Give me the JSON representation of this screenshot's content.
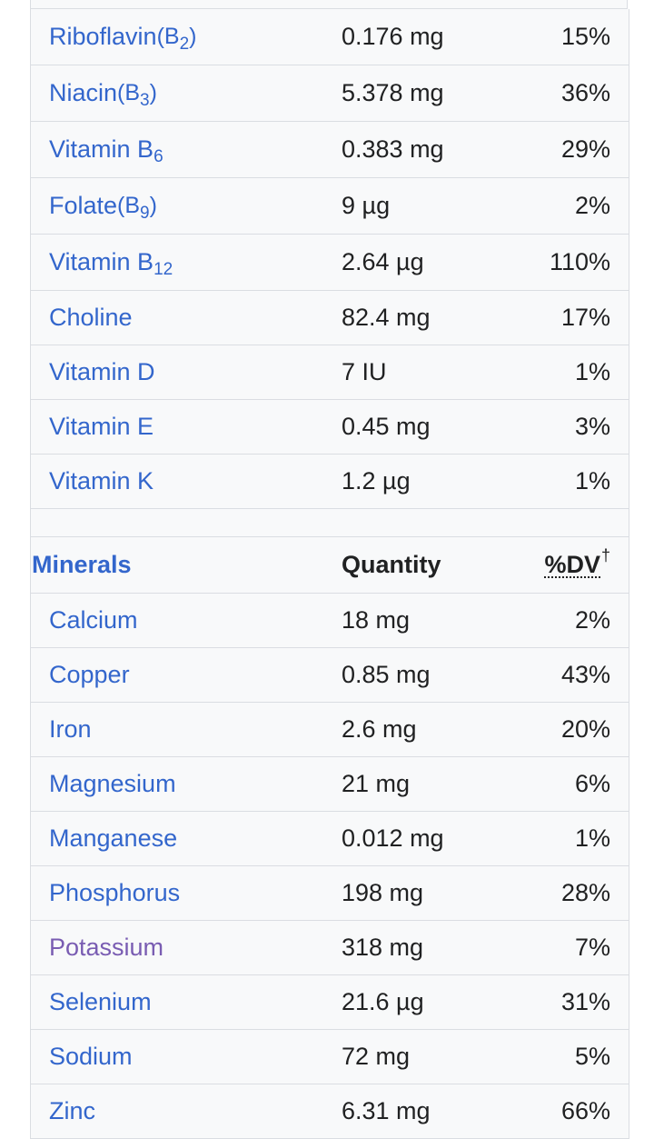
{
  "vitamins": [
    {
      "name": "Riboflavin",
      "paren_open": " (B",
      "sub": "2",
      "paren_close": ")",
      "qty": "0.176 mg",
      "dv": "15%"
    },
    {
      "name": "Niacin",
      "paren_open": " (B",
      "sub": "3",
      "paren_close": ")",
      "qty": "5.378 mg",
      "dv": "36%"
    },
    {
      "name": "Vitamin B",
      "paren_open": "",
      "sub": "6",
      "paren_close": "",
      "qty": "0.383 mg",
      "dv": "29%"
    },
    {
      "name": "Folate",
      "paren_open": " (B",
      "sub": "9",
      "paren_close": ")",
      "qty": "9 µg",
      "dv": "2%"
    },
    {
      "name": "Vitamin B",
      "paren_open": "",
      "sub": "12",
      "paren_close": "",
      "qty": "2.64 µg",
      "dv": "110%"
    },
    {
      "name": "Choline",
      "paren_open": "",
      "sub": "",
      "paren_close": "",
      "qty": "82.4 mg",
      "dv": "17%"
    },
    {
      "name": "Vitamin D",
      "paren_open": "",
      "sub": "",
      "paren_close": "",
      "qty": "7 IU",
      "dv": "1%"
    },
    {
      "name": "Vitamin E",
      "paren_open": "",
      "sub": "",
      "paren_close": "",
      "qty": "0.45 mg",
      "dv": "3%"
    },
    {
      "name": "Vitamin K",
      "paren_open": "",
      "sub": "",
      "paren_close": "",
      "qty": "1.2 µg",
      "dv": "1%"
    }
  ],
  "minerals_header": {
    "title": "Minerals",
    "quantity": "Quantity",
    "dv": "%DV",
    "dagger": "†"
  },
  "minerals": [
    {
      "name": "Calcium",
      "qty": "18 mg",
      "dv": "2%"
    },
    {
      "name": "Copper",
      "qty": "0.85 mg",
      "dv": "43%"
    },
    {
      "name": "Iron",
      "qty": "2.6 mg",
      "dv": "20%"
    },
    {
      "name": "Magnesium",
      "qty": "21 mg",
      "dv": "6%"
    },
    {
      "name": "Manganese",
      "qty": "0.012 mg",
      "dv": "1%"
    },
    {
      "name": "Phosphorus",
      "qty": "198 mg",
      "dv": "28%"
    },
    {
      "name": "Potassium",
      "qty": "318 mg",
      "dv": "7%"
    },
    {
      "name": "Selenium",
      "qty": "21.6 µg",
      "dv": "31%"
    },
    {
      "name": "Sodium",
      "qty": "72 mg",
      "dv": "5%"
    },
    {
      "name": "Zinc",
      "qty": "6.31 mg",
      "dv": "66%"
    }
  ],
  "colors": {
    "link": "#3366cc",
    "visited_link": "#795cb2",
    "text": "#202122",
    "table_bg": "#f8f9fa",
    "border": "#dadde2"
  }
}
